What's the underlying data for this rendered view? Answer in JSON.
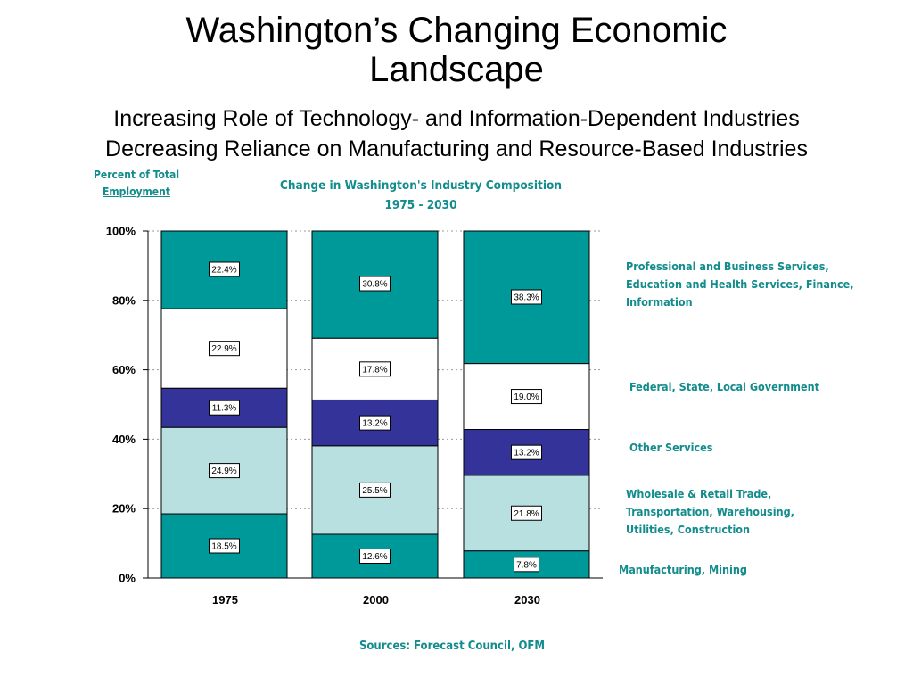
{
  "title": "Washington’s Changing Economic Landscape",
  "subtitle_lines": [
    "Increasing Role of Technology- and Information-Dependent Industries",
    "Decreasing Reliance on Manufacturing and Resource-Based Industries"
  ],
  "sources": "Sources: Forecast Council, OFM",
  "colors": {
    "teal_dark": "#009999",
    "white": "#ffffff",
    "navy": "#333399",
    "light_blue": "#b9e0e1",
    "text_teal": "#128c8c"
  },
  "chart_data": {
    "type": "bar",
    "stacked": true,
    "title": "Change in Washington's Industry Composition",
    "title_line2": "1975 - 2030",
    "ylabel_line1": "Percent of Total",
    "ylabel_line2": "Employment",
    "xlabel": "",
    "ylim": [
      0,
      100
    ],
    "yticks": [
      "0%",
      "20%",
      "40%",
      "60%",
      "80%",
      "100%"
    ],
    "ytick_values": [
      0,
      20,
      40,
      60,
      80,
      100
    ],
    "grid": "horizontal dashed",
    "legend_position": "right",
    "categories": [
      "1975",
      "2000",
      "2030"
    ],
    "series": [
      {
        "name": "Manufacturing, Mining",
        "color": "#009999",
        "values": [
          18.5,
          12.6,
          7.8
        ],
        "labels": [
          "18.5%",
          "12.6%",
          "7.8%"
        ]
      },
      {
        "name": "Wholesale & Retail Trade, Transportation, Warehousing, Utilities, Construction",
        "color": "#b9e0e1",
        "values": [
          24.9,
          25.5,
          21.8
        ],
        "labels": [
          "24.9%",
          "25.5%",
          "21.8%"
        ]
      },
      {
        "name": "Other Services",
        "color": "#333399",
        "values": [
          11.3,
          13.2,
          13.2
        ],
        "labels": [
          "11.3%",
          "13.2%",
          "13.2%"
        ]
      },
      {
        "name": "Federal, State, Local Government",
        "color": "#ffffff",
        "values": [
          22.9,
          17.8,
          19.0
        ],
        "labels": [
          "22.9%",
          "17.8%",
          "19.0%"
        ]
      },
      {
        "name": "Professional and Business Services, Education and Health Services, Finance, Information",
        "color": "#009999",
        "values": [
          22.4,
          30.8,
          38.3
        ],
        "labels": [
          "22.4%",
          "30.8%",
          "38.3%"
        ]
      }
    ]
  },
  "legend": [
    {
      "lines": [
        "Professional and Business Services,",
        "Education and Health Services, Finance,",
        "Information"
      ]
    },
    {
      "lines": [
        "Federal, State, Local Government"
      ]
    },
    {
      "lines": [
        "Other Services"
      ]
    },
    {
      "lines": [
        "Wholesale & Retail Trade,",
        "Transportation, Warehousing,",
        "Utilities, Construction"
      ]
    },
    {
      "lines": [
        "Manufacturing, Mining"
      ]
    }
  ]
}
